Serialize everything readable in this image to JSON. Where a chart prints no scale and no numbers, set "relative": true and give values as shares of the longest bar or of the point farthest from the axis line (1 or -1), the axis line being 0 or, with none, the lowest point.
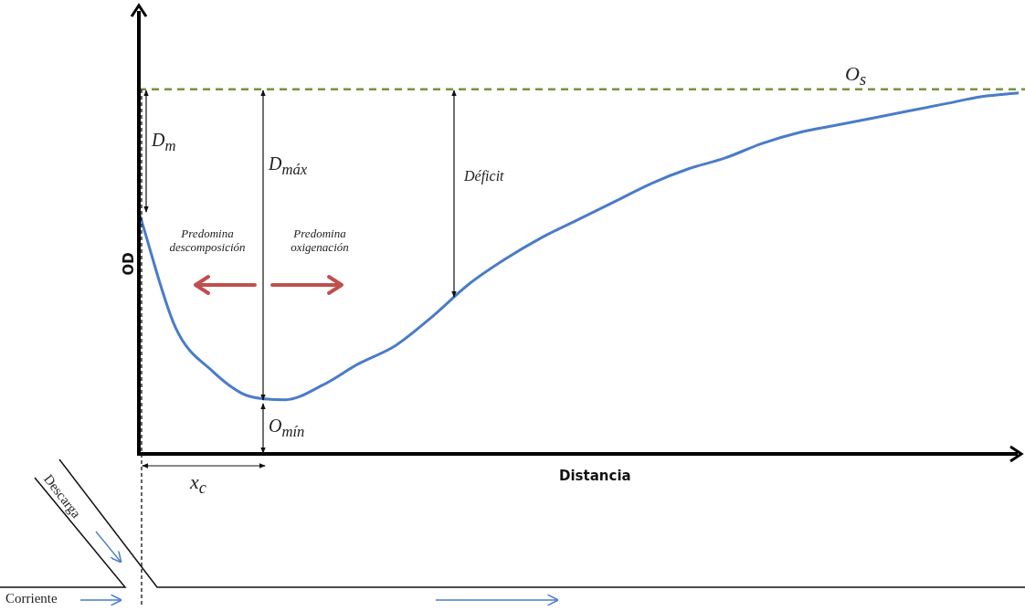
{
  "chart_data": {
    "type": "line",
    "xlabel": "Distancia",
    "ylabel": "OD",
    "relative": true,
    "legend": false,
    "grid": false,
    "marker": "none",
    "line_style": "solid",
    "categories": [
      null,
      null,
      null,
      null,
      null,
      null,
      null,
      null,
      null,
      null,
      null,
      null,
      null,
      null,
      null,
      null,
      null,
      null,
      null,
      null,
      null,
      null,
      null,
      null,
      null
    ],
    "series": [
      {
        "color": "#4a7cc9",
        "values": [
          0.67,
          0.35,
          0.23,
          0.16,
          0.15,
          0.19,
          0.25,
          0.3,
          0.38,
          0.47,
          0.54,
          0.6,
          0.65,
          0.7,
          0.75,
          0.79,
          0.82,
          0.86,
          0.89,
          0.91,
          0.93,
          0.95,
          0.97,
          0.99,
          1
        ]
      }
    ],
    "ref_lines": [
      {
        "axis": "y",
        "value": 1.01,
        "label": "O$_{s}$",
        "color": "#77933c",
        "line_style": "dashed"
      }
    ],
    "annotations": [
      "D$_{m}$",
      "D$_{máx}$",
      "Déficit",
      "Predomina\ndescomposición",
      "Predomina\noxigenación",
      "O$_{mín}$",
      "x$_{c}$",
      "Descarga",
      "Corriente"
    ]
  }
}
